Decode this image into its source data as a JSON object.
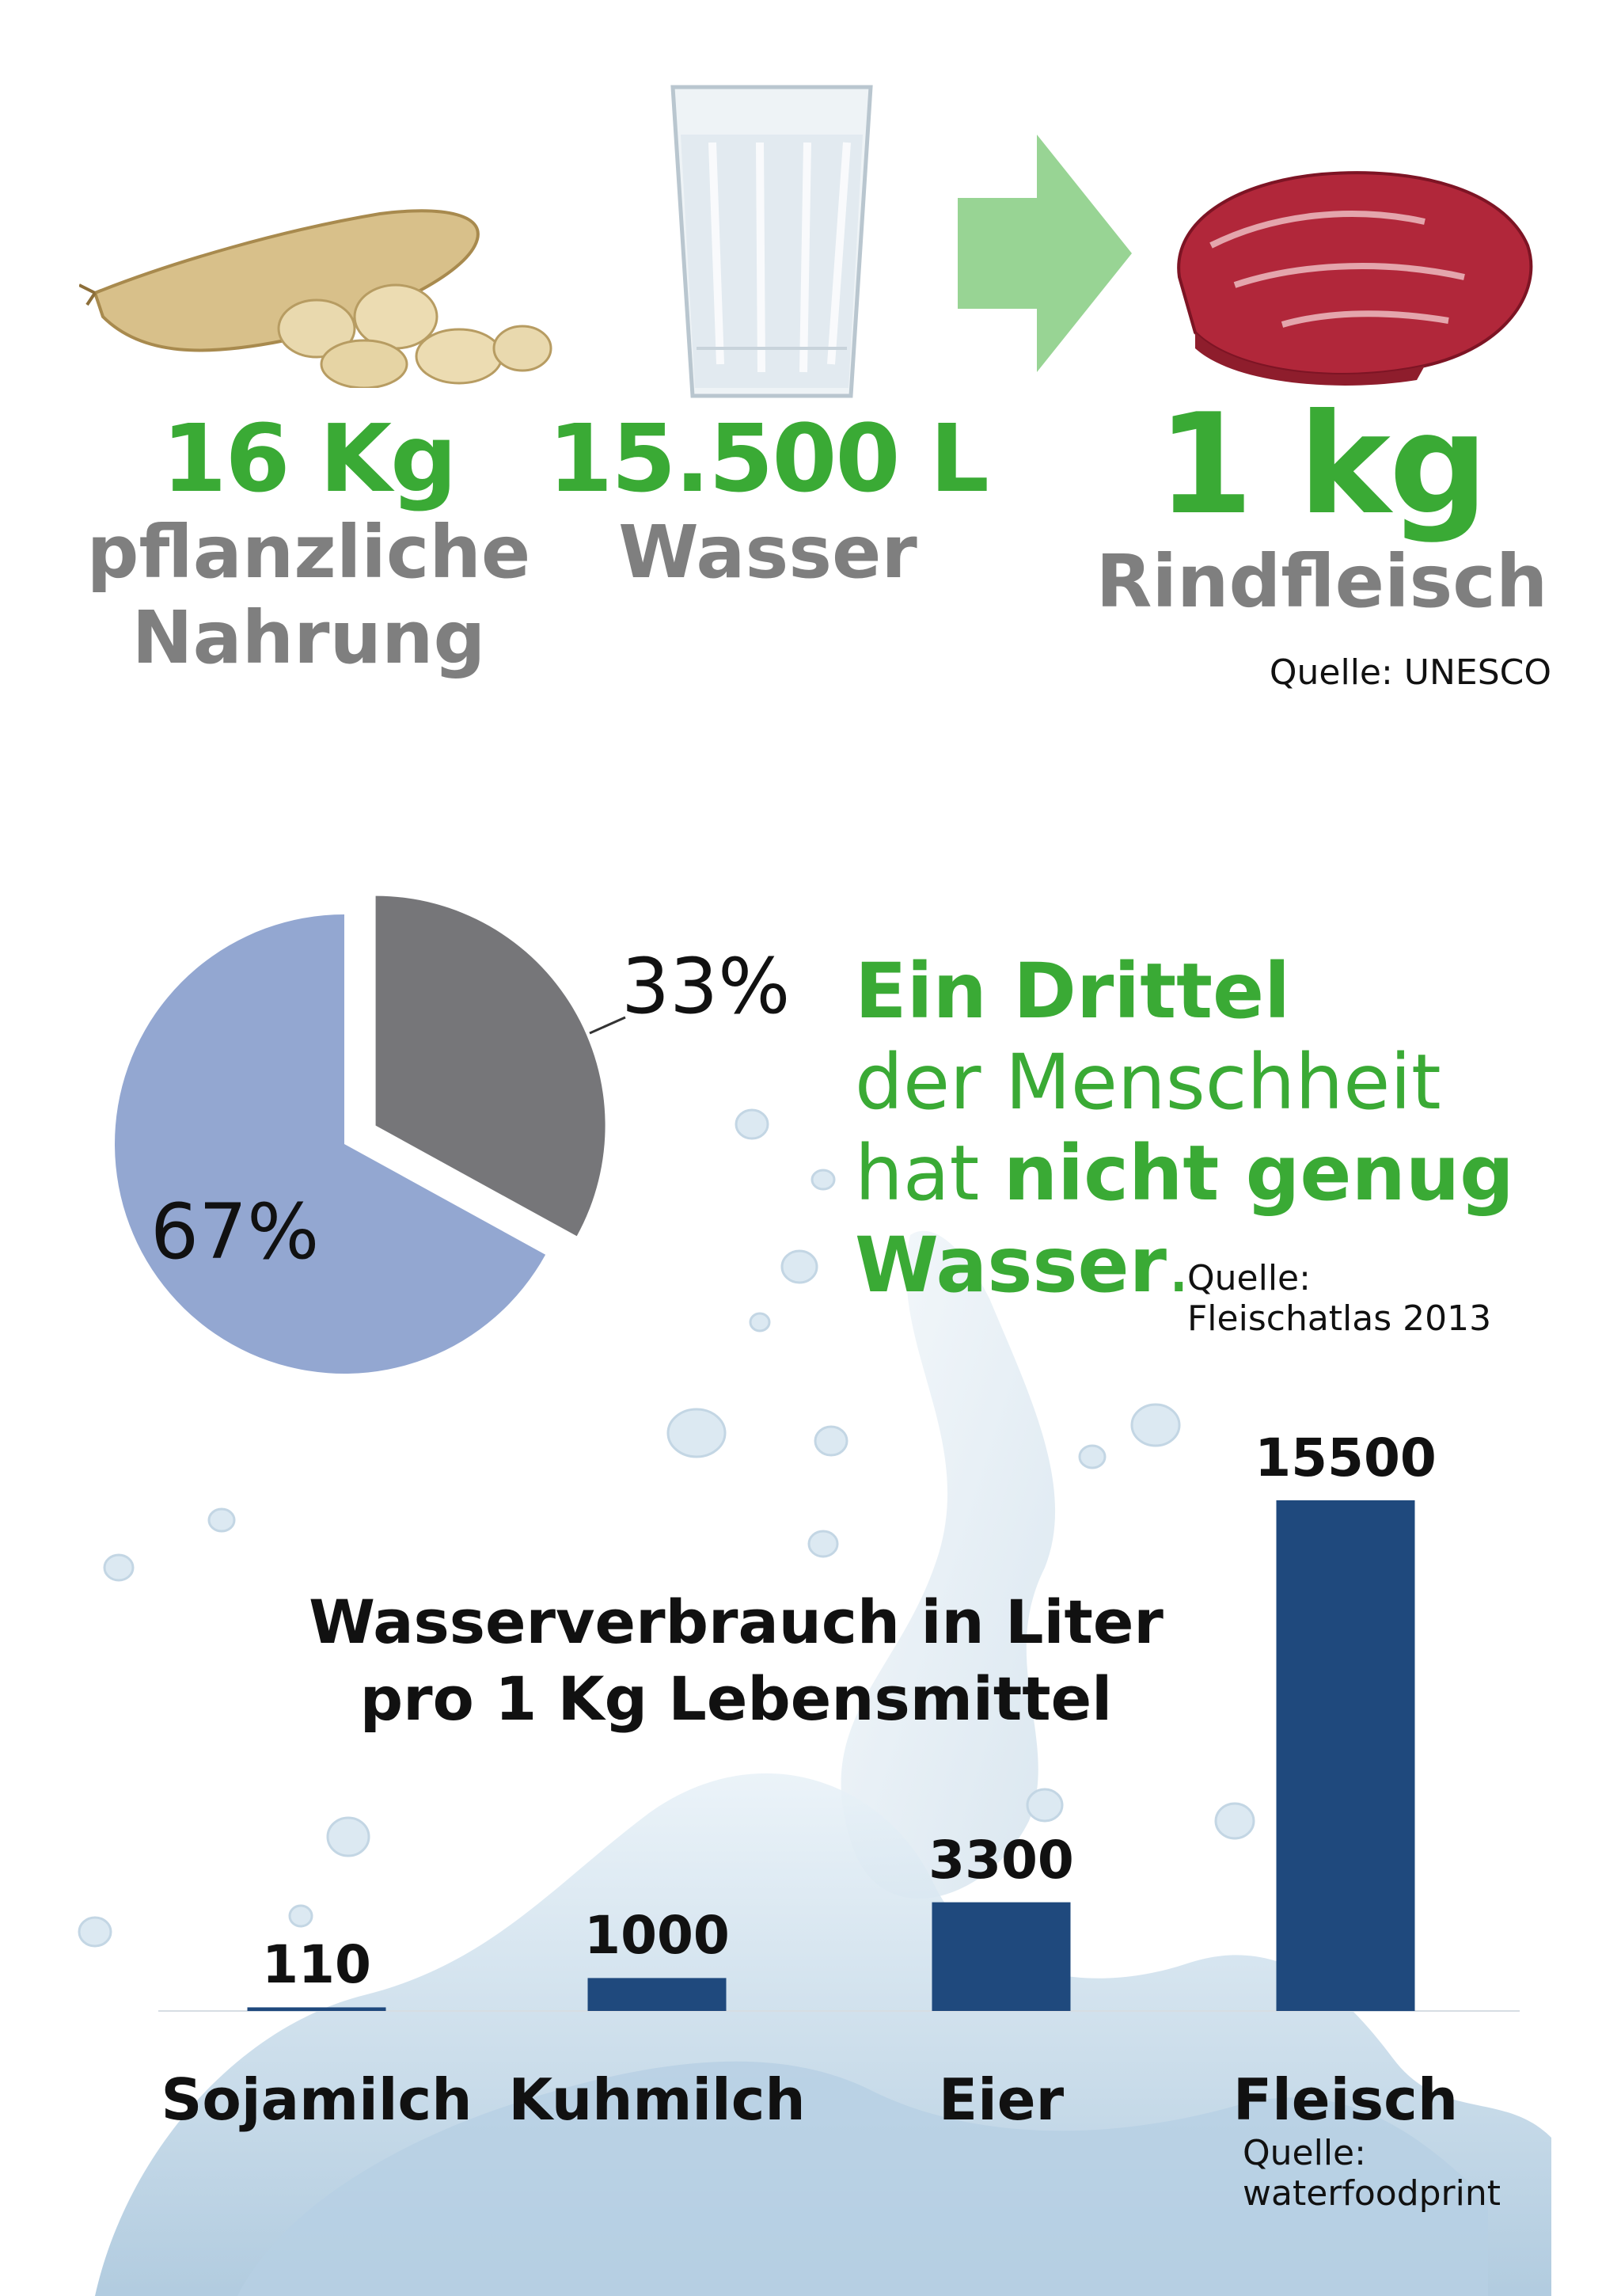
{
  "top": {
    "plants": {
      "value": "16 Kg",
      "label_line1": "pflanzliche",
      "label_line2": "Nahrung"
    },
    "water": {
      "value": "15.500 L",
      "label": "Wasser"
    },
    "beef": {
      "value": "1 kg",
      "label": "Rindfleisch",
      "source": "Quelle: UNESCO"
    },
    "icons": [
      "soybean-icon",
      "water-glass-icon",
      "arrow-right-icon",
      "beef-icon"
    ]
  },
  "pie": {
    "statement": {
      "line1_bold": "Ein Drittel",
      "line2": "der Menschheit",
      "line3_normal": "hat ",
      "line3_bold": "nicht genug",
      "line4_bold": "Wasser",
      "line4_dot": ".",
      "source_line1": "Quelle:",
      "source_line2": "Fleischatlas 2013"
    }
  },
  "chart_data": [
    {
      "type": "pie",
      "slices": [
        {
          "label": "33%",
          "value": 33,
          "color": "#767679"
        },
        {
          "label": "67%",
          "value": 67,
          "color": "#93a7d1"
        }
      ]
    },
    {
      "type": "bar",
      "title_line1": "Wasserverbrauch in Liter",
      "title_line2": "pro 1 Kg Lebensmittel",
      "categories": [
        "Sojamilch",
        "Kuhmilch",
        "Eier",
        "Fleisch"
      ],
      "values": [
        110,
        1000,
        3300,
        15500
      ],
      "value_labels": [
        "110",
        "1000",
        "3300",
        "15500"
      ],
      "ylim": [
        0,
        15500
      ],
      "bar_color": "#1f497d",
      "source_line1": "Quelle:",
      "source_line2": "waterfoodprint"
    }
  ],
  "colors": {
    "accent_green": "#3aaa35",
    "label_grey": "#7f7f7f",
    "arrow_green": "#98d494"
  }
}
